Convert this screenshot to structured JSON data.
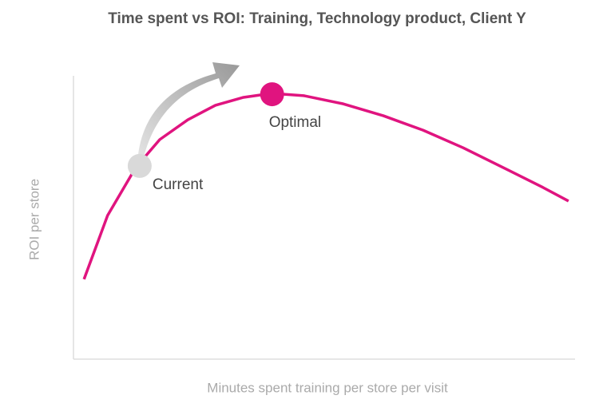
{
  "chart_data": {
    "type": "line",
    "title": "Time spent vs ROI: Training, Technology product, Client Y",
    "x_label": "Minutes spent training per store per visit",
    "y_label": "ROI per store",
    "x": [
      2.1,
      6.8,
      12.4,
      17.2,
      22.8,
      28.3,
      33.9,
      39.5,
      45.9,
      53.8,
      61.8,
      69.7,
      77.7,
      85.7,
      93.6,
      98.7
    ],
    "series": [
      {
        "color": "#e0147f",
        "values": [
          28.2,
          50.7,
          67.6,
          77.5,
          84.5,
          89.6,
          92.4,
          93.8,
          93.0,
          90.1,
          85.9,
          80.8,
          74.6,
          67.6,
          60.6,
          55.8
        ]
      }
    ],
    "annotations": [
      {
        "label": "Current",
        "x": 13.2,
        "y": 68.2,
        "color": "#d9d9d9"
      },
      {
        "label": "Optimal",
        "x": 39.6,
        "y": 93.5,
        "color": "#e0147f"
      }
    ],
    "xlim": [
      0,
      100
    ],
    "ylim": [
      0,
      100
    ]
  }
}
